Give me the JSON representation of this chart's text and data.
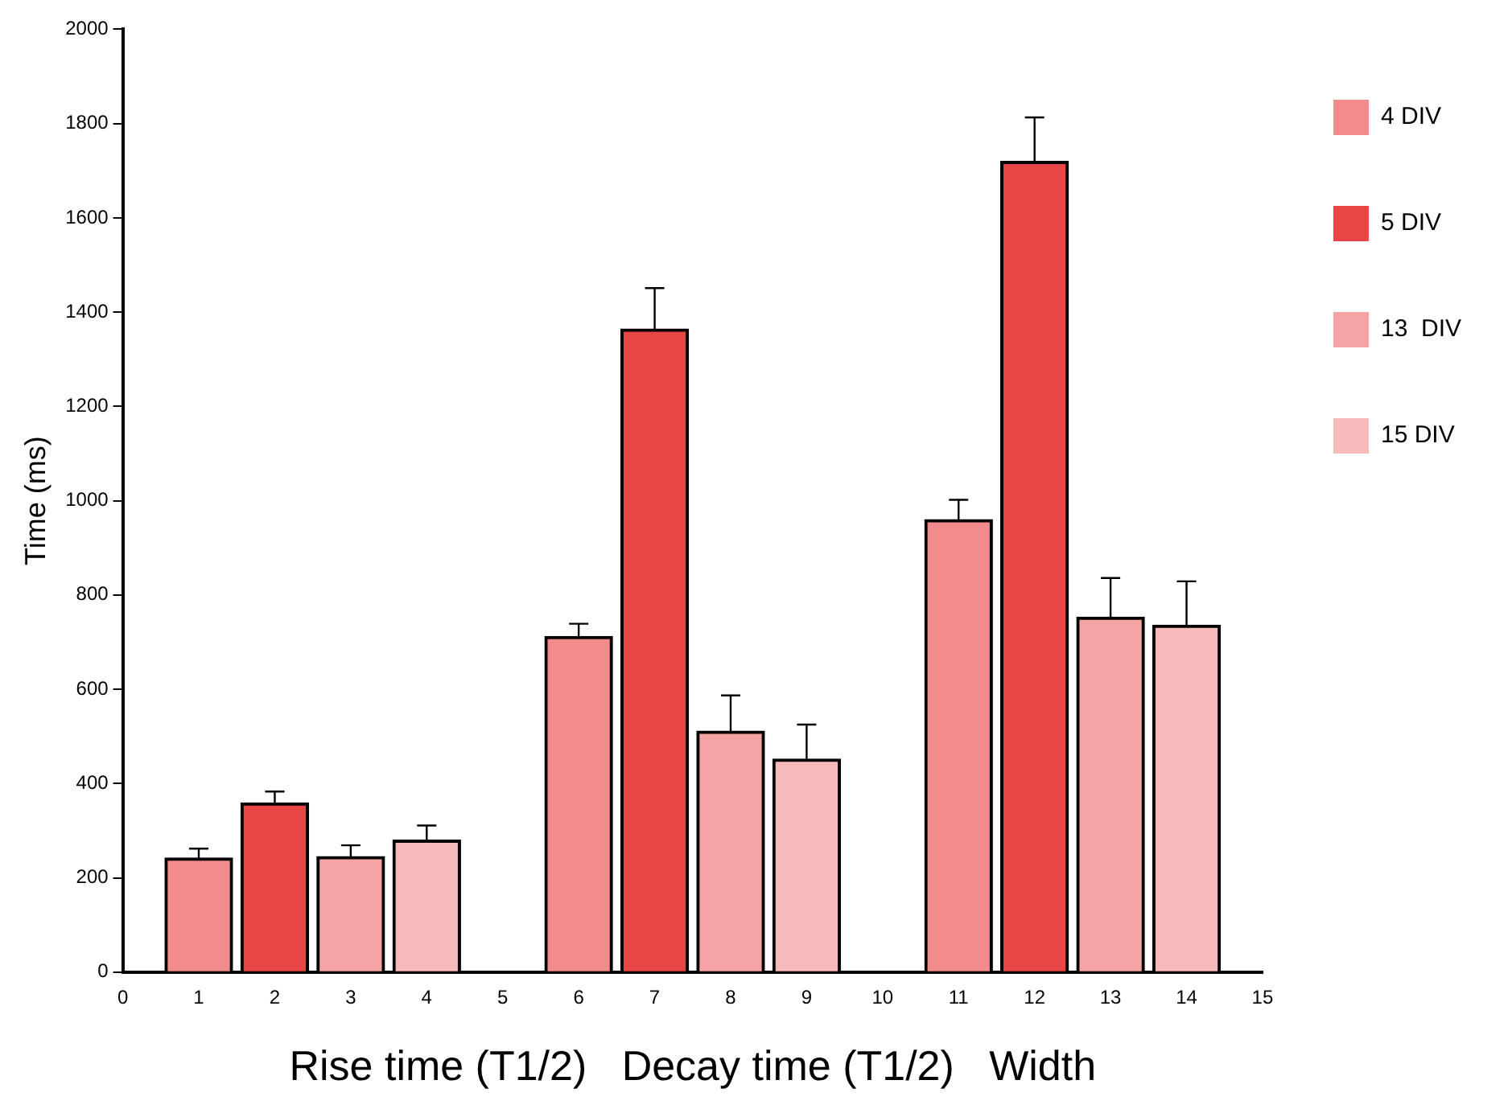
{
  "chart_data": {
    "type": "bar",
    "xlabel": "Rise time (T1/2)   Decay time (T1/2)   Width",
    "ylabel": "Time (ms)",
    "xlim": [
      0,
      15
    ],
    "xticks": [
      0,
      1,
      2,
      3,
      4,
      5,
      6,
      7,
      8,
      9,
      10,
      11,
      12,
      13,
      14,
      15
    ],
    "ylim": [
      0,
      2000
    ],
    "yticks": [
      0,
      200,
      400,
      600,
      800,
      1000,
      1200,
      1400,
      1600,
      1800,
      2000
    ],
    "grid": false,
    "legend": "right",
    "series": [
      {
        "name": "4 DIV",
        "color": "#f28b8b",
        "x": [
          1,
          6,
          11
        ],
        "values": [
          242,
          712,
          960
        ],
        "errors": [
          [
            242,
            262
          ],
          [
            712,
            739
          ],
          [
            960,
            1002
          ]
        ]
      },
      {
        "name": "5 DIV",
        "color": "#e84545",
        "x": [
          2,
          7,
          12
        ],
        "values": [
          359,
          1364,
          1720
        ],
        "errors": [
          [
            359,
            383
          ],
          [
            1364,
            1451
          ],
          [
            1720,
            1813
          ]
        ]
      },
      {
        "name": "13  DIV",
        "color": "#f5a3a3",
        "x": [
          3,
          8,
          13
        ],
        "values": [
          245,
          511,
          753
        ],
        "errors": [
          [
            245,
            269
          ],
          [
            511,
            587
          ],
          [
            753,
            836
          ]
        ]
      },
      {
        "name": "15 DIV",
        "color": "#f7baba",
        "x": [
          4,
          9,
          14
        ],
        "values": [
          280,
          452,
          736
        ],
        "errors": [
          [
            280,
            311
          ],
          [
            452,
            525
          ],
          [
            736,
            829
          ]
        ]
      }
    ]
  }
}
